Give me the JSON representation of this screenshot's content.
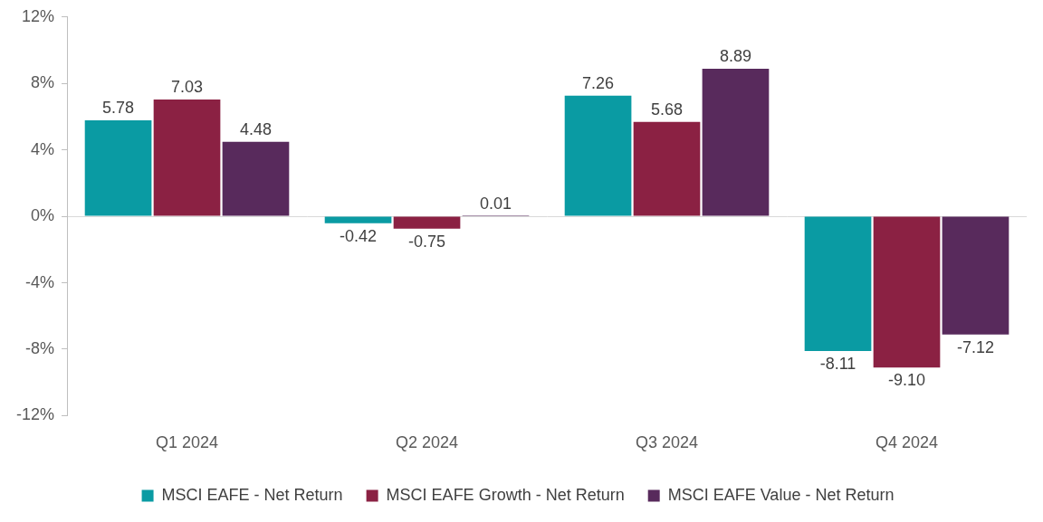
{
  "chart_data": {
    "type": "bar",
    "categories": [
      "Q1 2024",
      "Q2 2024",
      "Q3 2024",
      "Q4 2024"
    ],
    "series": [
      {
        "name": "MSCI EAFE - Net Return",
        "color": "#0a9ba3",
        "values": [
          5.78,
          -0.42,
          7.26,
          -8.11
        ],
        "value_labels": [
          "5.78",
          "-0.42",
          "7.26",
          "-8.11"
        ]
      },
      {
        "name": "MSCI EAFE Growth - Net Return",
        "color": "#8b2143",
        "values": [
          7.03,
          -0.75,
          5.68,
          -9.1
        ],
        "value_labels": [
          "7.03",
          "-0.75",
          "5.68",
          "-9.10"
        ]
      },
      {
        "name": "MSCI EAFE Value - Net Return",
        "color": "#582a5c",
        "values": [
          4.48,
          0.01,
          8.89,
          -7.12
        ],
        "value_labels": [
          "4.48",
          "0.01",
          "8.89",
          "-7.12"
        ]
      }
    ],
    "ylim": [
      -12,
      12
    ],
    "yticks": [
      {
        "value": -12,
        "label": "-12%"
      },
      {
        "value": -8,
        "label": "-8%"
      },
      {
        "value": -4,
        "label": "-4%"
      },
      {
        "value": 0,
        "label": "0%"
      },
      {
        "value": 4,
        "label": "4%"
      },
      {
        "value": 8,
        "label": "8%"
      },
      {
        "value": 12,
        "label": "12%"
      }
    ],
    "grid": false,
    "legend": "bottom",
    "data_labels": true
  }
}
